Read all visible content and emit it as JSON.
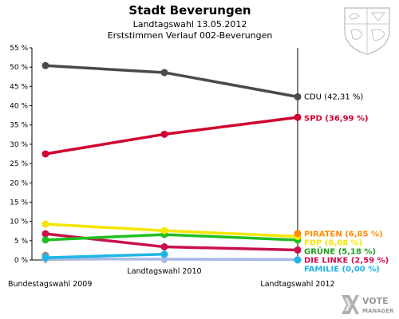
{
  "chart_data": {
    "type": "line",
    "title": "Stadt Beverungen",
    "subtitle": "Landtagswahl 13.05.2012",
    "subtitle2": "Erststimmen Verlauf 002-Beverungen",
    "categories": [
      "Bundestagswahl 2009",
      "Landtagswahl 2010",
      "Landtagswahl 2012"
    ],
    "ylim": [
      0,
      55
    ],
    "yticks": [
      0,
      5,
      10,
      15,
      20,
      25,
      30,
      35,
      40,
      45,
      50,
      55
    ],
    "ytick_labels": [
      "0 %",
      "5 %",
      "10 %",
      "15 %",
      "20 %",
      "25 %",
      "30 %",
      "35 %",
      "40 %",
      "45 %",
      "50 %",
      "55 %"
    ],
    "grid": false,
    "series": [
      {
        "name": "CDU",
        "values": [
          50.4,
          48.6,
          42.31
        ],
        "color": "#4a4a4a",
        "end_label": "CDU (42,31 %)",
        "label_color": "#000000"
      },
      {
        "name": "SPD",
        "values": [
          27.5,
          32.6,
          36.99
        ],
        "color": "#d0002e",
        "end_label": "SPD (36,99 %)",
        "label_color": "#d0002e"
      },
      {
        "name": "PIRATEN",
        "values": [
          null,
          null,
          6.85
        ],
        "color": "#ff8c00",
        "end_label": "PIRATEN (6,85 %)",
        "label_color": "#ff8c00"
      },
      {
        "name": "FDP",
        "values": [
          9.3,
          7.6,
          6.1
        ],
        "color": "#f5e600",
        "end_label": "FDP (6,08 %)",
        "label_color": "#f5e600"
      },
      {
        "name": "GRÜNE",
        "values": [
          5.2,
          6.6,
          5.18
        ],
        "color": "#1fbf1f",
        "end_label": "GRÜNE (5,18 %)",
        "label_color": "#1f9f1f"
      },
      {
        "name": "DIE LINKE",
        "values": [
          6.8,
          3.4,
          2.59
        ],
        "color": "#c8104a",
        "end_label": "DIE LINKE (2,59 %)",
        "label_color": "#c8104a"
      },
      {
        "name": "FAMILIE",
        "values": [
          null,
          null,
          0.0
        ],
        "color": "#1fb6e6",
        "end_label": "FAMILIE (0,00 %)",
        "label_color": "#1fb6e6"
      },
      {
        "name": "",
        "values": [
          0.6,
          1.5,
          null
        ],
        "color": "#1fb6e6",
        "end_label": "",
        "label_color": "#1fb6e6"
      },
      {
        "name": "",
        "values": [
          0.3,
          0.2,
          0.1
        ],
        "color": "#a8b8e8",
        "end_label": "",
        "label_color": "#a8b8e8"
      },
      {
        "name": "",
        "values": [
          1.2,
          null,
          null
        ],
        "color": "#888888",
        "end_label": "",
        "label_color": "#888888"
      }
    ]
  },
  "branding": {
    "logo_line1": "VOTE",
    "logo_line2": "MANAGER"
  },
  "icons": {
    "crest": "coat-of-arms-icon",
    "logo": "votemanager-logo-icon"
  }
}
